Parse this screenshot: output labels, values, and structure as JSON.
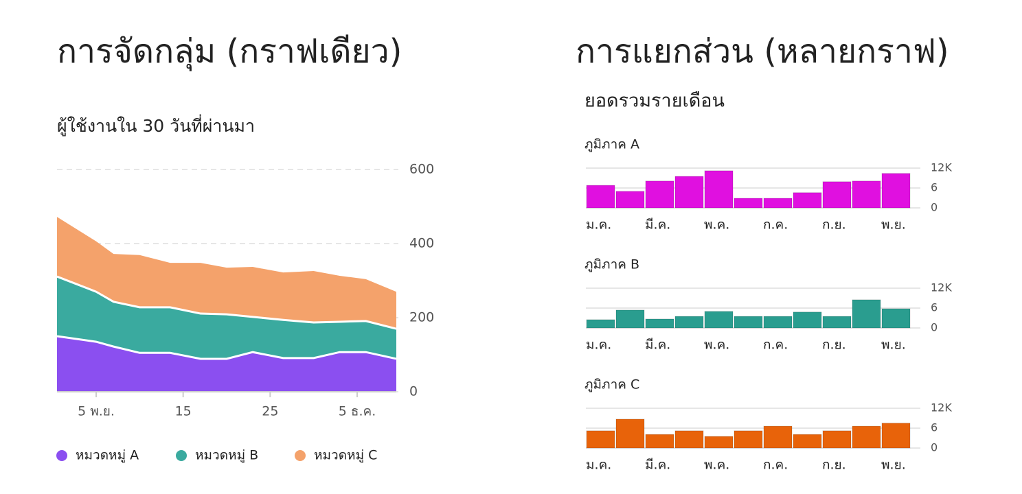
{
  "sections": [
    {
      "heading": "การจัดกลุ่ม (กราฟเดียว)"
    },
    {
      "heading": "การแยกส่วน (หลายกราฟ)",
      "subtitle": "ยอดรวมรายเดือน"
    }
  ],
  "chart_data": [
    {
      "type": "area",
      "stacked": true,
      "title": "ผู้ใช้งานใน 30 วันที่ผ่านมา",
      "x": [
        0.5,
        5,
        7,
        10,
        13.5,
        17,
        20,
        23,
        26.5,
        30,
        33,
        36,
        39.5
      ],
      "xlim": [
        0.5,
        39.5
      ],
      "xticks": [
        {
          "value": 5,
          "label": "5 พ.ย."
        },
        15,
        25,
        {
          "value": 35,
          "label": "5 ธ.ค."
        }
      ],
      "ylim": [
        0,
        600
      ],
      "yticks": [
        0,
        200,
        400,
        600
      ],
      "grid": true,
      "legend": "bottom",
      "series": [
        {
          "name": "หมวดหมู่ A",
          "color": "#8b4ff0",
          "values": [
            150,
            135,
            122,
            105,
            105,
            89,
            89,
            107,
            91,
            91,
            107,
            107,
            89
          ]
        },
        {
          "name": "หมวดหมู่ B",
          "color": "#3aaa9f",
          "values": [
            161,
            135,
            121,
            123,
            123,
            122,
            120,
            95,
            103,
            96,
            82,
            84,
            81
          ]
        },
        {
          "name": "หมวดหมู่ C",
          "color": "#f4a26b",
          "values": [
            161,
            136,
            129,
            141,
            120,
            137,
            126,
            135,
            128,
            139,
            124,
            113,
            100
          ]
        }
      ]
    },
    {
      "type": "bar",
      "title": "ภูมิภาค A",
      "categories": [
        "ม.ค.",
        null,
        "มี.ค.",
        null,
        "พ.ค.",
        null,
        "ก.ค.",
        null,
        "ก.ย.",
        null,
        "พ.ย."
      ],
      "values": [
        6.8,
        5.0,
        8.1,
        9.5,
        11.2,
        2.9,
        2.9,
        4.6,
        7.9,
        8.1,
        10.4
      ],
      "color": "#e010e0",
      "ylim": [
        0,
        12
      ],
      "yticks": [
        0,
        6,
        {
          "value": 12,
          "label": "12K"
        }
      ],
      "grid": true
    },
    {
      "type": "bar",
      "title": "ภูมิภาค B",
      "categories": [
        "ม.ค.",
        null,
        "มี.ค.",
        null,
        "พ.ค.",
        null,
        "ก.ค.",
        null,
        "ก.ย.",
        null,
        "พ.ย."
      ],
      "values": [
        2.5,
        5.4,
        2.7,
        3.5,
        5.0,
        3.5,
        3.5,
        4.8,
        3.5,
        8.5,
        5.8
      ],
      "color": "#2a9d8f",
      "ylim": [
        0,
        12
      ],
      "yticks": [
        0,
        6,
        {
          "value": 12,
          "label": "12K"
        }
      ],
      "grid": true
    },
    {
      "type": "bar",
      "title": "ภูมิภาค C",
      "categories": [
        "ม.ค.",
        null,
        "มี.ค.",
        null,
        "พ.ค.",
        null,
        "ก.ค.",
        null,
        "ก.ย.",
        null,
        "พ.ย."
      ],
      "values": [
        5.2,
        8.7,
        4.1,
        5.2,
        3.5,
        5.2,
        6.6,
        4.1,
        5.2,
        6.6,
        7.5
      ],
      "color": "#e8630a",
      "ylim": [
        0,
        12
      ],
      "yticks": [
        0,
        6,
        {
          "value": 12,
          "label": "12K"
        }
      ],
      "grid": true
    }
  ]
}
